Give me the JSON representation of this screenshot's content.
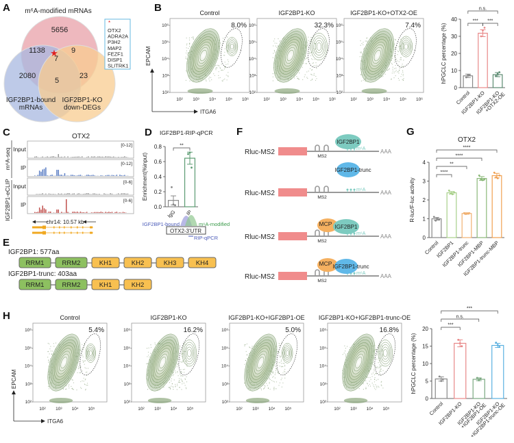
{
  "panels": {
    "A": {
      "label": "A",
      "title_m6a": "m⁶A-modified mRNAs",
      "label_bound": [
        "IGF2BP1-bound",
        "mRNAs"
      ],
      "label_ko": [
        "IGF2BP1-KO",
        "down-DEGs"
      ],
      "counts": {
        "m6a_only": "5656",
        "m6a_bound": "1138",
        "m6a_ko": "9",
        "all_three": "7",
        "bound_only": "2080",
        "bound_ko": "5",
        "ko_only": "23"
      },
      "star": "★",
      "gene_box_marker": "*",
      "genes": [
        "OTX2",
        "ADRA2A",
        "P3H2",
        "MAP2",
        "FEZF1",
        "DISP1",
        "SLITRK1"
      ],
      "colors": {
        "m6a": "#e8a0a8",
        "bound": "#a8b8e0",
        "ko": "#f8cc90",
        "box": "#66b8e0",
        "star": "#e02020"
      }
    },
    "B": {
      "label": "B",
      "xaxis": "ITGA6",
      "yaxis": "EPCAM",
      "xticks": [
        "10²",
        "10³",
        "10⁴",
        "10⁵",
        "10⁶"
      ],
      "yticks": [
        "10²",
        "10³",
        "10⁴",
        "10⁵",
        "10⁶"
      ],
      "facs": [
        {
          "title": "Control",
          "pct": "8.0%"
        },
        {
          "title": "IGF2BP1-KO",
          "pct": "32.3%"
        },
        {
          "title": "IGF2BP1-KO+OTX2-OE",
          "pct": "7.4%"
        }
      ]
    },
    "C": {
      "label": "C",
      "gene": "OTX2",
      "group1": "m⁶A-seq",
      "group2": "IGF2BP1-eCLIP",
      "tracks": [
        {
          "name": "Input",
          "range": "[0-12]",
          "color": "#999999"
        },
        {
          "name": "IP",
          "range": "[0-12]",
          "color": "#5b7ec4"
        },
        {
          "name": "Input",
          "range": "[0-6]",
          "color": "#999999"
        },
        {
          "name": "IP",
          "range": "[0-6]",
          "color": "#c0504d"
        }
      ],
      "locus": "chr14: 10.57 kb",
      "transcript_color": "#f0a820"
    },
    "D": {
      "label": "D",
      "title": "IGF2BP1-RIP-qPCR",
      "sig": "**",
      "bound_label": "IGF2BP1-bound",
      "m6a_label": "m⁶A-modified",
      "utr_label": "OTX2-3'UTR",
      "rip_label": "RIP-qPCR"
    },
    "E": {
      "label": "E",
      "proteins": [
        {
          "name": "IGF2BP1: 577aa",
          "domains": [
            "RRM1",
            "RRM2",
            "KH1",
            "KH2",
            "KH3",
            "KH4"
          ]
        },
        {
          "name": "IGF2BP1-trunc: 403aa",
          "domains": [
            "RRM1",
            "RRM2",
            "KH1",
            "KH2"
          ]
        }
      ],
      "colors": {
        "RRM": "#8dc060",
        "KH": "#f8c050"
      }
    },
    "F": {
      "label": "F",
      "constructs": [
        {
          "name": "Rluc-MS2",
          "mcp": "",
          "protein": "IGF2BP1",
          "protein_color": "#7dcbc0",
          "detached": false
        },
        {
          "name": "Rluc-MS2",
          "mcp": "",
          "protein": "IGF2BP1-trunc",
          "protein_color": "#60b8e8",
          "detached": true
        },
        {
          "name": "Rluc-MS2",
          "mcp": "MCP",
          "protein": "IGF2BP1",
          "protein_color": "#7dcbc0",
          "detached": false
        },
        {
          "name": "Rluc-MS2",
          "mcp": "MCP",
          "protein": "IGF2BP1-trunc",
          "protein_color": "#60b8e8",
          "detached": false
        }
      ],
      "ms2": "MS2",
      "m6a": "m⁶A",
      "polyA": "AAA",
      "mcp_color": "#f5b060",
      "rluc_color": "#f08c8c"
    },
    "H": {
      "label": "H",
      "xaxis": "ITGA6",
      "yaxis": "EPCAM",
      "xticks": [
        "10²",
        "10³",
        "10⁴",
        "10⁵"
      ],
      "yticks": [
        "10²",
        "10³",
        "10⁴",
        "10⁵",
        "10⁶"
      ],
      "facs": [
        {
          "title": "Control",
          "pct": "5.4%"
        },
        {
          "title": "IGF2BP1-KO",
          "pct": "16.2%"
        },
        {
          "title": "IGF2BP1-KO+IGF2BP1-OE",
          "pct": "5.0%"
        },
        {
          "title": "IGF2BP1-KO+IGF2BP1-trunc-OE",
          "pct": "16.8%"
        }
      ]
    }
  },
  "chart_data": [
    {
      "id": "B-bar",
      "type": "bar",
      "title": "",
      "ylabel": "hPGCLC percentage (%)",
      "ylim": [
        0,
        40
      ],
      "yticks": [
        0,
        10,
        20,
        30,
        40
      ],
      "categories": [
        "Control",
        "IGF2BP1-KO",
        "IGF2BP1-KO\n+OTX2-OE"
      ],
      "values": [
        6.9,
        31.8,
        7.6
      ],
      "errors": [
        1.0,
        2.0,
        1.2
      ],
      "points": [
        [
          6,
          7.5,
          7.2
        ],
        [
          30,
          33.5,
          35
        ],
        [
          6.8,
          8,
          9
        ]
      ],
      "colors": [
        "#888888",
        "#e88888",
        "#5a8a70"
      ],
      "significance": [
        {
          "from": 0,
          "to": 1,
          "label": "***",
          "level": 0
        },
        {
          "from": 1,
          "to": 2,
          "label": "***",
          "level": 0
        },
        {
          "from": 0,
          "to": 2,
          "label": "n.s.",
          "level": 1
        }
      ]
    },
    {
      "id": "D-bar",
      "type": "bar",
      "title": "IGF2BP1-RIP-qPCR",
      "ylabel": "Enrichment(%input)",
      "ylim": [
        0,
        0.8
      ],
      "yticks": [
        "0.0",
        "0.2",
        "0.4",
        "0.6",
        "0.8"
      ],
      "categories": [
        "IgG",
        "IP"
      ],
      "values": [
        0.085,
        0.645
      ],
      "errors": [
        0.06,
        0.08
      ],
      "points": [
        [
          0.26,
          0.03,
          0.02
        ],
        [
          0.7,
          0.72,
          0.52
        ]
      ],
      "colors": [
        "#888888",
        "#5a9a70"
      ],
      "significance": [
        {
          "from": 0,
          "to": 1,
          "label": "**",
          "level": 0
        }
      ]
    },
    {
      "id": "G-bar",
      "type": "bar",
      "title": "OTX2",
      "ylabel": "R-luc/F-luc activity",
      "ylim": [
        0,
        4
      ],
      "yticks": [
        0,
        1,
        2,
        3,
        4
      ],
      "categories": [
        "Control",
        "IGF2BP1",
        "IGF2BP1-trunc",
        "IGF2BP1-MBP",
        "IGF2BP1-trunc-MBP"
      ],
      "values": [
        1.0,
        2.38,
        1.28,
        3.14,
        3.29
      ],
      "errors": [
        0.07,
        0.07,
        0.04,
        0.1,
        0.12
      ],
      "points": [
        [
          1.1,
          0.9,
          1.0,
          0.95
        ],
        [
          2.5,
          2.35,
          2.3,
          2.4
        ],
        [
          1.3,
          1.25,
          1.28,
          1.3
        ],
        [
          3.3,
          3.1,
          3.05,
          3.1
        ],
        [
          3.45,
          3.2,
          3.15,
          3.3
        ]
      ],
      "colors": [
        "#888888",
        "#a8d08a",
        "#f0b070",
        "#8ab878",
        "#f0a050"
      ],
      "significance": [
        {
          "from": 0,
          "to": 1,
          "label": "****",
          "level": 0
        },
        {
          "from": 0,
          "to": 2,
          "label": "**",
          "level": 1
        },
        {
          "from": 0,
          "to": 3,
          "label": "****",
          "level": 2
        },
        {
          "from": 0,
          "to": 4,
          "label": "****",
          "level": 3
        }
      ]
    },
    {
      "id": "H-bar",
      "type": "bar",
      "title": "",
      "ylabel": "hPGCLC percentage (%)",
      "ylim": [
        0,
        20
      ],
      "yticks": [
        0,
        5,
        10,
        15,
        20
      ],
      "categories": [
        "Control",
        "IGF2BP1-KO",
        "IGF2BP1-KO\n+IGF2BP1-OE",
        "IGF2BP1-KO\n+IGF2BP1-trunc-OE"
      ],
      "values": [
        5.6,
        15.8,
        5.5,
        15.2
      ],
      "errors": [
        0.6,
        1.0,
        0.4,
        0.6
      ],
      "points": [
        [
          6.3,
          5.0,
          5.5
        ],
        [
          16.8,
          15.8,
          15.0
        ],
        [
          5.9,
          5.2,
          5.6
        ],
        [
          16.0,
          15.3,
          14.8
        ]
      ],
      "colors": [
        "#888888",
        "#e88888",
        "#7aa880",
        "#5ab0e0"
      ],
      "significance": [
        {
          "from": 0,
          "to": 1,
          "label": "***",
          "level": 0
        },
        {
          "from": 0,
          "to": 2,
          "label": "n.s.",
          "level": 1
        },
        {
          "from": 0,
          "to": 3,
          "label": "***",
          "level": 2
        }
      ]
    }
  ]
}
